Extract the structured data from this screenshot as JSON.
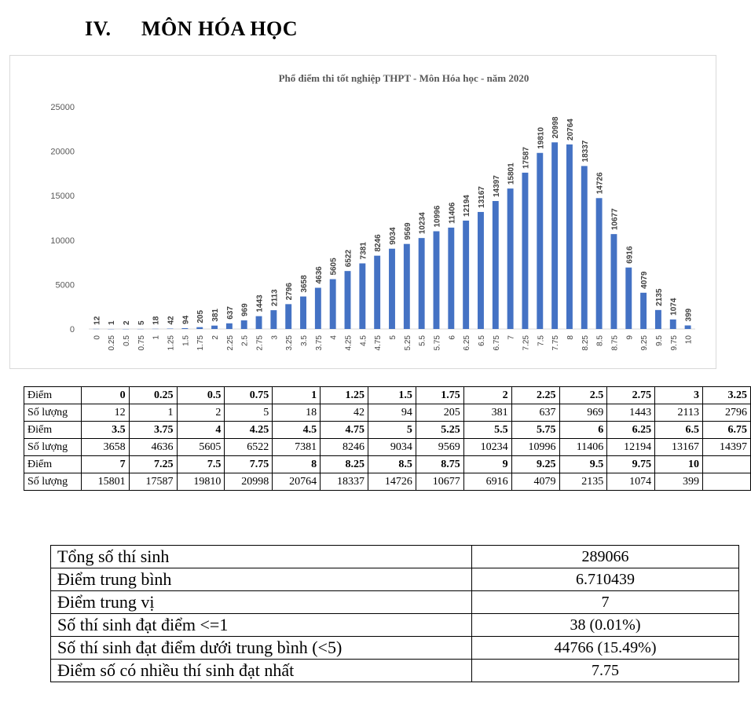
{
  "heading": {
    "roman": "IV.",
    "title": "MÔN HÓA HỌC"
  },
  "chart_data": {
    "type": "bar",
    "title": "Phổ điểm thi tốt nghiệp THPT - Môn Hóa học - năm 2020",
    "xlabel": "",
    "ylabel": "",
    "ylim": [
      0,
      25000
    ],
    "yticks": [
      "0",
      "5000",
      "10000",
      "15000",
      "20000",
      "25000"
    ],
    "grid": false,
    "bar_color": "#4472c4",
    "categories": [
      "0",
      "0.25",
      "0.5",
      "0.75",
      "1",
      "1.25",
      "1.5",
      "1.75",
      "2",
      "2.25",
      "2.5",
      "2.75",
      "3",
      "3.25",
      "3.5",
      "3.75",
      "4",
      "4.25",
      "4.5",
      "4.75",
      "5",
      "5.25",
      "5.5",
      "5.75",
      "6",
      "6.25",
      "6.5",
      "6.75",
      "7",
      "7.25",
      "7.5",
      "7.75",
      "8",
      "8.25",
      "8.5",
      "8.75",
      "9",
      "9.25",
      "9.5",
      "9.75",
      "10"
    ],
    "values": [
      12,
      1,
      2,
      5,
      18,
      42,
      94,
      205,
      381,
      637,
      969,
      1443,
      2113,
      2796,
      3658,
      4636,
      5605,
      6522,
      7381,
      8246,
      9034,
      9569,
      10234,
      10996,
      11406,
      12194,
      13167,
      14397,
      15801,
      17587,
      19810,
      20998,
      20764,
      18337,
      14726,
      10677,
      6916,
      4079,
      2135,
      1074,
      399
    ]
  },
  "dist_table": {
    "rows": [
      {
        "label_points": "Điểm",
        "label_count": "Số lượng",
        "points": [
          "0",
          "0.25",
          "0.5",
          "0.75",
          "1",
          "1.25",
          "1.5",
          "1.75",
          "2",
          "2.25",
          "2.5",
          "2.75",
          "3",
          "3.25"
        ],
        "counts": [
          "12",
          "1",
          "2",
          "5",
          "18",
          "42",
          "94",
          "205",
          "381",
          "637",
          "969",
          "1443",
          "2113",
          "2796"
        ]
      },
      {
        "label_points": "Điểm",
        "label_count": "Số lượng",
        "points": [
          "3.5",
          "3.75",
          "4",
          "4.25",
          "4.5",
          "4.75",
          "5",
          "5.25",
          "5.5",
          "5.75",
          "6",
          "6.25",
          "6.5",
          "6.75"
        ],
        "counts": [
          "3658",
          "4636",
          "5605",
          "6522",
          "7381",
          "8246",
          "9034",
          "9569",
          "10234",
          "10996",
          "11406",
          "12194",
          "13167",
          "14397"
        ]
      },
      {
        "label_points": "Điểm",
        "label_count": "Số lượng",
        "points": [
          "7",
          "7.25",
          "7.5",
          "7.75",
          "8",
          "8.25",
          "8.5",
          "8.75",
          "9",
          "9.25",
          "9.5",
          "9.75",
          "10",
          ""
        ],
        "counts": [
          "15801",
          "17587",
          "19810",
          "20998",
          "20764",
          "18337",
          "14726",
          "10677",
          "6916",
          "4079",
          "2135",
          "1074",
          "399",
          ""
        ]
      }
    ]
  },
  "summary": [
    {
      "key": "Tổng số thí sinh",
      "value": "289066"
    },
    {
      "key": "Điểm trung bình",
      "value": "6.710439"
    },
    {
      "key": "Điểm trung vị",
      "value": "7"
    },
    {
      "key": "Số thí sinh đạt điểm <=1",
      "value": "38 (0.01%)"
    },
    {
      "key": "Số thí sinh đạt điểm dưới trung bình (<5)",
      "value": "44766 (15.49%)"
    },
    {
      "key": "Điểm số có nhiều thí sinh đạt nhất",
      "value": "7.75"
    }
  ]
}
